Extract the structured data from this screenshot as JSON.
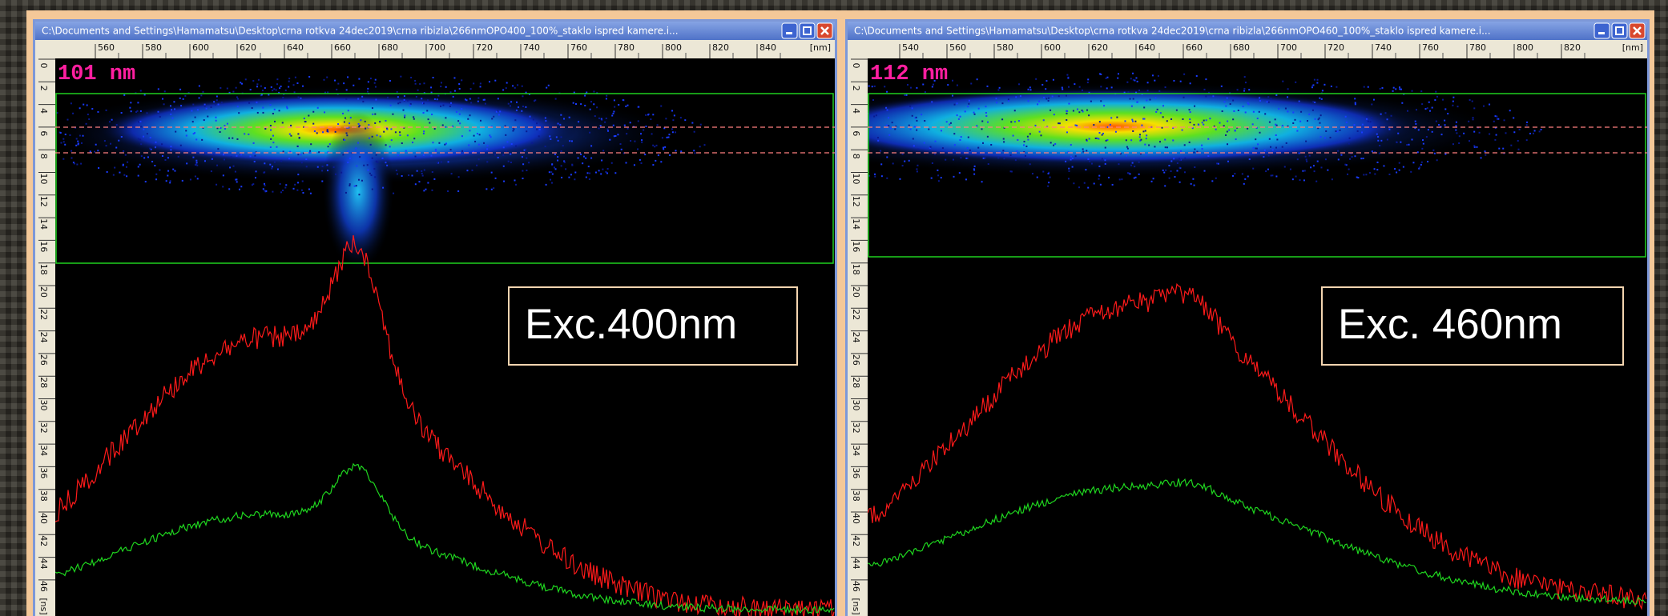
{
  "windows": [
    {
      "title": "C:\\Documents and Settings\\Hamamatsu\\Desktop\\crna rotkva 24dec2019\\crna ribizla\\266nmOPO400_100%_staklo ispred kamere.i...",
      "wavelength_ticks": [
        "560",
        "580",
        "600",
        "620",
        "640",
        "660",
        "680",
        "700",
        "720",
        "740",
        "760",
        "780",
        "800",
        "820",
        "840"
      ],
      "wavelength_unit": "[nm]",
      "time_ticks": [
        "0",
        "2",
        "4",
        "6",
        "8",
        "10",
        "12",
        "14",
        "16",
        "18",
        "20",
        "22",
        "24",
        "26",
        "28",
        "30",
        "32",
        "34",
        "36",
        "38",
        "40",
        "42",
        "44",
        "46"
      ],
      "time_unit": "[ns]",
      "overlay": "101 nm",
      "label": "Exc.400nm"
    },
    {
      "title": "C:\\Documents and Settings\\Hamamatsu\\Desktop\\crna rotkva 24dec2019\\crna ribizla\\266nmOPO460_100%_staklo ispred kamere.i...",
      "wavelength_ticks": [
        "540",
        "560",
        "580",
        "600",
        "620",
        "640",
        "660",
        "680",
        "700",
        "720",
        "740",
        "760",
        "780",
        "800",
        "820"
      ],
      "wavelength_unit": "[nm]",
      "time_ticks": [
        "0",
        "2",
        "4",
        "6",
        "8",
        "10",
        "12",
        "14",
        "16",
        "18",
        "20",
        "22",
        "24",
        "26",
        "28",
        "30",
        "32",
        "34",
        "36",
        "38",
        "40",
        "42",
        "44",
        "46"
      ],
      "time_unit": "[ns]",
      "overlay": "112 nm",
      "label": "Exc. 460nm"
    }
  ]
}
